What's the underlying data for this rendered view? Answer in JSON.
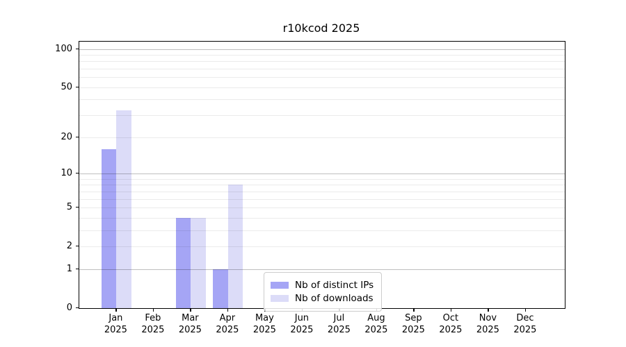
{
  "title": "r10kcod 2025",
  "colors": {
    "distinct_ips": "#a5a5f5",
    "downloads": "#dcdcf8",
    "axis": "#000000",
    "grid_major": "rgba(0,0,0,0.25)",
    "grid_minor": "rgba(0,0,0,0.08)",
    "legend_border": "#cccccc",
    "background": "#ffffff"
  },
  "legend": {
    "items": [
      {
        "label": "Nb of distinct IPs",
        "color_key": "distinct_ips"
      },
      {
        "label": "Nb of downloads",
        "color_key": "downloads"
      }
    ],
    "position": "lower center"
  },
  "chart_data": {
    "type": "bar",
    "title": "r10kcod 2025",
    "categories": [
      "Jan\n2025",
      "Feb\n2025",
      "Mar\n2025",
      "Apr\n2025",
      "May\n2025",
      "Jun\n2025",
      "Jul\n2025",
      "Aug\n2025",
      "Sep\n2025",
      "Oct\n2025",
      "Nov\n2025",
      "Dec\n2025"
    ],
    "series": [
      {
        "name": "Nb of distinct IPs",
        "color_key": "distinct_ips",
        "values": [
          16,
          0,
          4,
          1,
          0,
          0,
          0,
          0,
          0,
          0,
          0,
          0
        ]
      },
      {
        "name": "Nb of downloads",
        "color_key": "downloads",
        "values": [
          33,
          0,
          4,
          8,
          0,
          0,
          0,
          0,
          0,
          0,
          0,
          0
        ]
      }
    ],
    "xlabel": "",
    "ylabel": "",
    "y_scale": "log(1+y)",
    "ylim": [
      0,
      114
    ],
    "y_ticks": [
      0,
      1,
      2,
      5,
      10,
      20,
      50,
      100
    ],
    "y_major_gridlines": [
      1,
      10,
      100
    ],
    "y_minor_gridlines": [
      2,
      3,
      4,
      5,
      6,
      7,
      8,
      9,
      20,
      30,
      40,
      50,
      60,
      70,
      80,
      90
    ],
    "grid": "on",
    "legend_position": "lower center"
  }
}
